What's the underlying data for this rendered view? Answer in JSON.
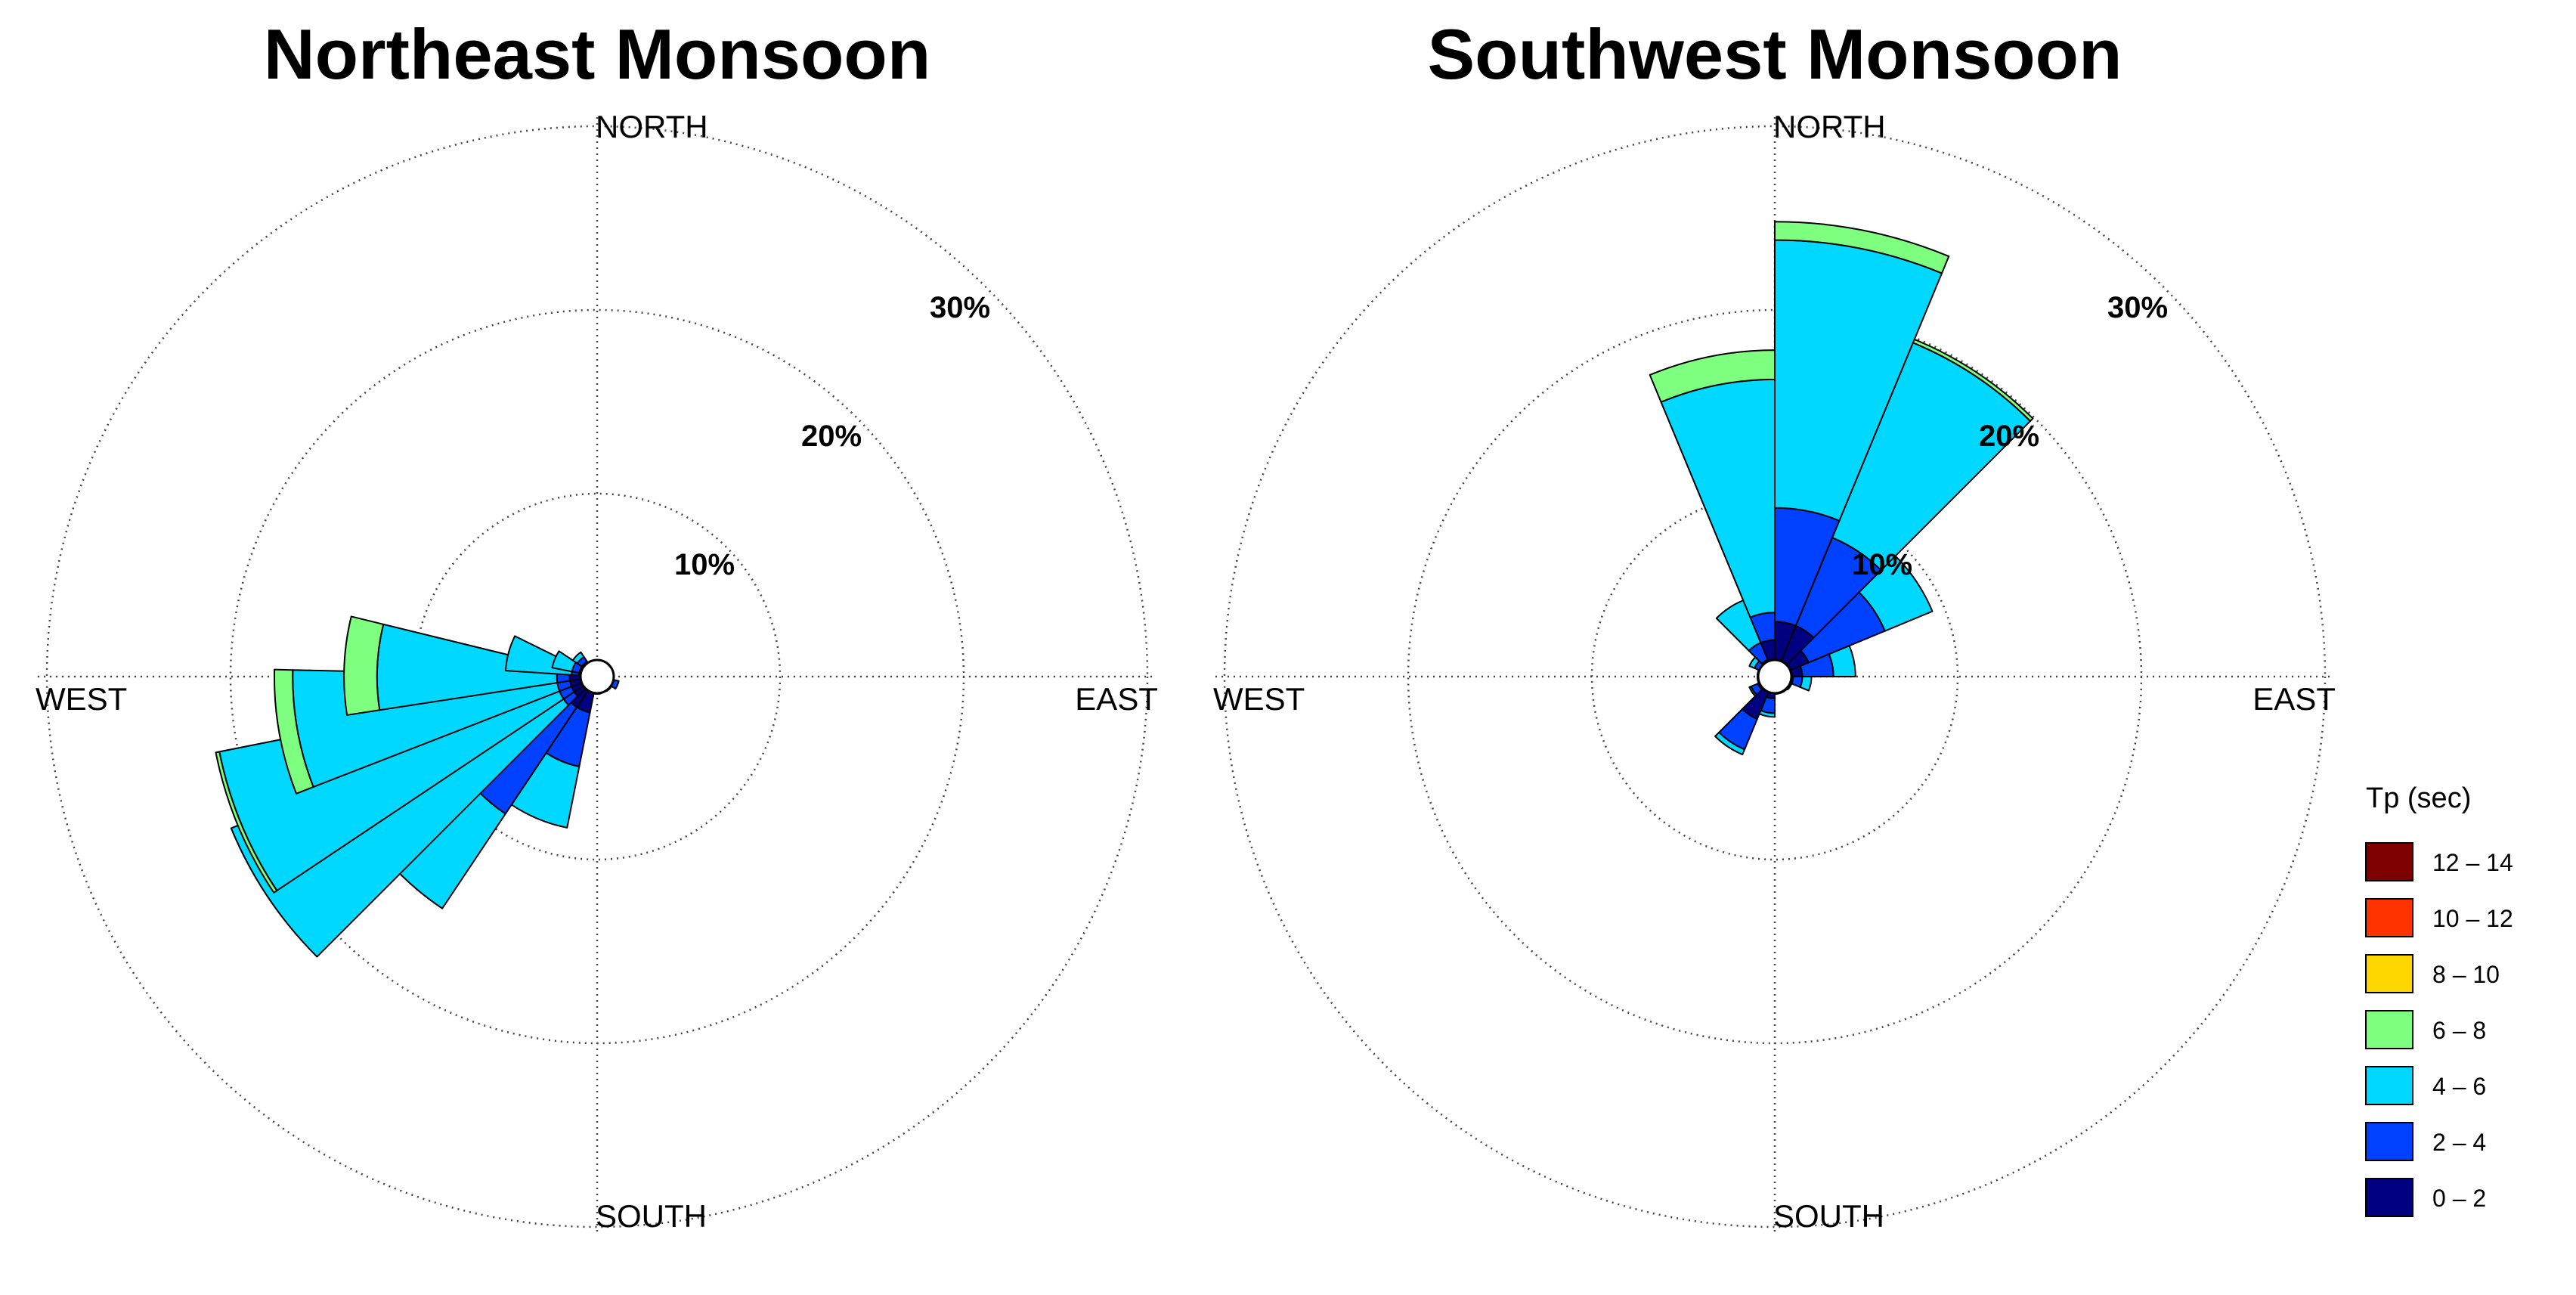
{
  "bins": [
    {
      "label": "12 – 14",
      "color": "#7f0000"
    },
    {
      "label": "10 – 12",
      "color": "#ff3300"
    },
    {
      "label": "8 – 10",
      "color": "#ffd700"
    },
    {
      "label": "6 – 8",
      "color": "#7fff7f"
    },
    {
      "label": "4 – 6",
      "color": "#00d8ff"
    },
    {
      "label": "2 – 4",
      "color": "#0040ff"
    },
    {
      "label": "0 – 2",
      "color": "#000080"
    }
  ],
  "legend": {
    "title": "Tp (sec)"
  },
  "chart_data": [
    {
      "type": "rose",
      "title": "Northeast Monsoon",
      "directions": {
        "north": "NORTH",
        "east": "EAST",
        "south": "SOUTH",
        "west": "WEST"
      },
      "rings": [
        10,
        20,
        30
      ],
      "ring_labels": [
        "10%",
        "20%",
        "30%"
      ],
      "rmax": 33.3,
      "sector_width_deg": 22.5,
      "bin_order": [
        "0 – 2",
        "2 – 4",
        "4 – 6",
        "6 – 8",
        "8 – 10",
        "10 – 12",
        "12 – 14"
      ],
      "sectors": [
        {
          "direction_deg": 112.5,
          "cumulative": [
            0.8,
            1.2,
            1.2,
            1.2,
            1.2,
            1.2,
            1.2
          ]
        },
        {
          "direction_deg": 135.0,
          "cumulative": [
            0.5,
            0.6,
            0.6,
            0.6,
            0.6,
            0.6,
            0.6
          ]
        },
        {
          "direction_deg": 180.0,
          "cumulative": [
            0.4,
            0.5,
            0.5,
            0.5,
            0.5,
            0.5,
            0.5
          ]
        },
        {
          "direction_deg": 202.5,
          "cumulative": [
            2.0,
            5.0,
            8.4,
            8.4,
            8.4,
            8.4,
            8.4
          ]
        },
        {
          "direction_deg": 225.0,
          "cumulative": [
            2.0,
            9.0,
            15.2,
            15.2,
            15.2,
            15.2,
            15.2
          ]
        },
        {
          "direction_deg": 236.25,
          "cumulative": [
            1.5,
            2.2,
            21.6,
            21.6,
            21.6,
            21.6,
            21.6
          ]
        },
        {
          "direction_deg": 247.5,
          "cumulative": [
            1.5,
            2.2,
            21.0,
            21.2,
            21.2,
            21.2,
            21.2
          ]
        },
        {
          "direction_deg": 260.0,
          "cumulative": [
            1.5,
            2.2,
            16.6,
            17.6,
            17.6,
            17.6,
            17.6
          ]
        },
        {
          "direction_deg": 272.5,
          "cumulative": [
            1.5,
            2.2,
            12.0,
            13.8,
            13.8,
            13.8,
            13.8
          ]
        },
        {
          "direction_deg": 285.0,
          "cumulative": [
            1.0,
            1.4,
            5.0,
            5.0,
            5.0,
            5.0,
            5.0
          ]
        },
        {
          "direction_deg": 292.5,
          "cumulative": [
            1.0,
            1.4,
            2.5,
            2.5,
            2.5,
            2.5,
            2.5
          ]
        },
        {
          "direction_deg": 315.0,
          "cumulative": [
            1.0,
            1.3,
            1.6,
            1.6,
            1.6,
            1.6,
            1.6
          ]
        }
      ]
    },
    {
      "type": "rose",
      "title": "Southwest Monsoon",
      "directions": {
        "north": "NORTH",
        "east": "EAST",
        "south": "SOUTH",
        "west": "WEST"
      },
      "rings": [
        10,
        20,
        30
      ],
      "ring_labels": [
        "10%",
        "20%",
        "30%"
      ],
      "rmax": 33.3,
      "sector_width_deg": 22.5,
      "bin_order": [
        "0 – 2",
        "2 – 4",
        "4 – 6",
        "6 – 8",
        "8 – 10",
        "10 – 12",
        "12 – 14"
      ],
      "sectors": [
        {
          "direction_deg": 11.25,
          "cumulative": [
            3.0,
            9.2,
            23.8,
            24.8,
            24.8,
            24.8,
            24.8
          ]
        },
        {
          "direction_deg": 33.75,
          "cumulative": [
            3.0,
            8.2,
            19.7,
            19.9,
            19.9,
            19.9,
            19.9
          ]
        },
        {
          "direction_deg": 56.25,
          "cumulative": [
            2.0,
            6.5,
            9.3,
            9.3,
            9.3,
            9.3,
            9.3
          ]
        },
        {
          "direction_deg": 78.75,
          "cumulative": [
            1.5,
            3.2,
            4.4,
            4.4,
            4.4,
            4.4,
            4.4
          ]
        },
        {
          "direction_deg": 101.25,
          "cumulative": [
            1.0,
            1.5,
            2.0,
            2.0,
            2.0,
            2.0,
            2.0
          ]
        },
        {
          "direction_deg": 123.75,
          "cumulative": [
            0.6,
            0.9,
            1.0,
            1.0,
            1.0,
            1.0,
            1.0
          ]
        },
        {
          "direction_deg": 146.25,
          "cumulative": [
            0.4,
            0.6,
            0.6,
            0.6,
            0.6,
            0.6,
            0.6
          ]
        },
        {
          "direction_deg": 168.75,
          "cumulative": [
            0.4,
            0.5,
            0.5,
            0.5,
            0.5,
            0.5,
            0.5
          ]
        },
        {
          "direction_deg": 191.25,
          "cumulative": [
            1.2,
            2.0,
            2.2,
            2.2,
            2.2,
            2.2,
            2.2
          ]
        },
        {
          "direction_deg": 213.75,
          "cumulative": [
            2.5,
            4.3,
            4.6,
            4.6,
            4.6,
            4.6,
            4.6
          ]
        },
        {
          "direction_deg": 236.25,
          "cumulative": [
            1.0,
            1.4,
            1.5,
            1.5,
            1.5,
            1.5,
            1.5
          ]
        },
        {
          "direction_deg": 258.75,
          "cumulative": [
            0.5,
            0.7,
            0.8,
            0.8,
            0.8,
            0.8,
            0.8
          ]
        },
        {
          "direction_deg": 281.25,
          "cumulative": [
            0.5,
            0.7,
            0.8,
            0.8,
            0.8,
            0.8,
            0.8
          ]
        },
        {
          "direction_deg": 303.75,
          "cumulative": [
            0.8,
            1.2,
            1.5,
            1.5,
            1.5,
            1.5,
            1.5
          ]
        },
        {
          "direction_deg": 326.25,
          "cumulative": [
            1.0,
            2.0,
            4.5,
            4.5,
            4.5,
            4.5,
            4.5
          ]
        },
        {
          "direction_deg": 348.75,
          "cumulative": [
            2.0,
            3.5,
            16.2,
            17.8,
            17.8,
            17.8,
            17.8
          ]
        }
      ]
    }
  ]
}
